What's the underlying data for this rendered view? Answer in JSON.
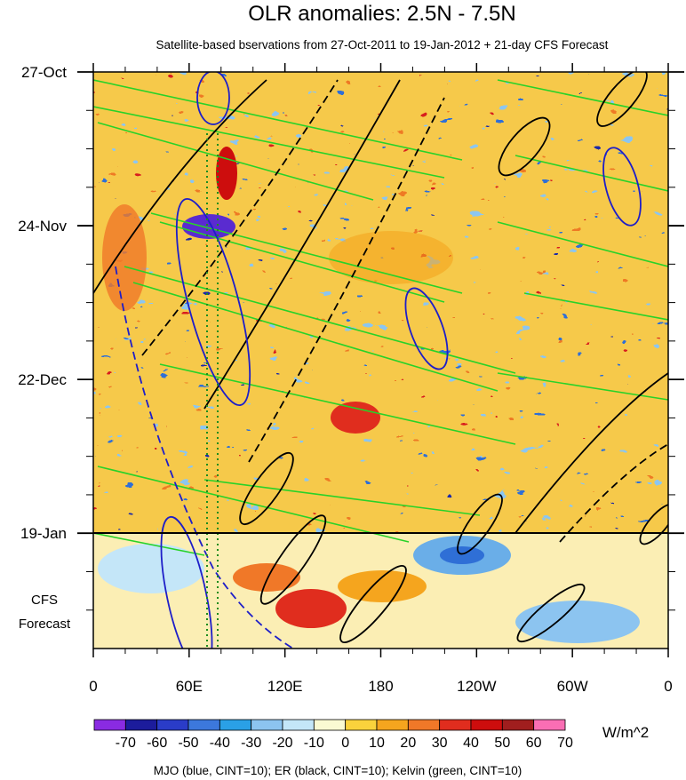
{
  "chart_data": {
    "type": "heatmap",
    "title": "OLR anomalies: 2.5N - 7.5N",
    "subtitle": "Satellite-based bservations from 27-Oct-2011 to 19-Jan-2012 + 21-day CFS Forecast",
    "xlabel": "",
    "ylabel": "",
    "x_ticks": [
      "0",
      "60E",
      "120E",
      "180",
      "120W",
      "60W",
      "0"
    ],
    "x_tick_lon": [
      0,
      60,
      120,
      180,
      240,
      300,
      360
    ],
    "y_ticks": [
      {
        "label": "27-Oct",
        "day": 0
      },
      {
        "label": "24-Nov",
        "day": 28
      },
      {
        "label": "22-Dec",
        "day": 56
      },
      {
        "label": "19-Jan",
        "day": 84
      }
    ],
    "y_range_days": [
      0,
      105
    ],
    "forecast_start_day": 84,
    "forecast_label": [
      "CFS",
      "Forecast"
    ],
    "colorbar": {
      "levels": [
        "-70",
        "-60",
        "-50",
        "-40",
        "-30",
        "-20",
        "-10",
        "0",
        "10",
        "20",
        "30",
        "40",
        "50",
        "60",
        "70"
      ],
      "colors": [
        "#8a2be2",
        "#1c1c9c",
        "#2a3cc8",
        "#3c78dc",
        "#2aa0e6",
        "#8cc4f0",
        "#c4e6f8",
        "#fafad2",
        "#fad23c",
        "#f5a51e",
        "#f07828",
        "#e02d1e",
        "#cd0d0d",
        "#a01e1e",
        "#fa6eb4"
      ],
      "units": "W/m^2"
    },
    "contours": {
      "mjo": {
        "name": "MJO",
        "color": "#1e1ec8",
        "cint": 10
      },
      "er": {
        "name": "ER",
        "color": "#000000",
        "cint": 10
      },
      "kelvin": {
        "name": "Kelvin",
        "color": "#28d228",
        "cint": 10
      }
    },
    "footnote": "MJO (blue, CINT=10); ER (black, CINT=10); Kelvin (green, CINT=10)"
  }
}
